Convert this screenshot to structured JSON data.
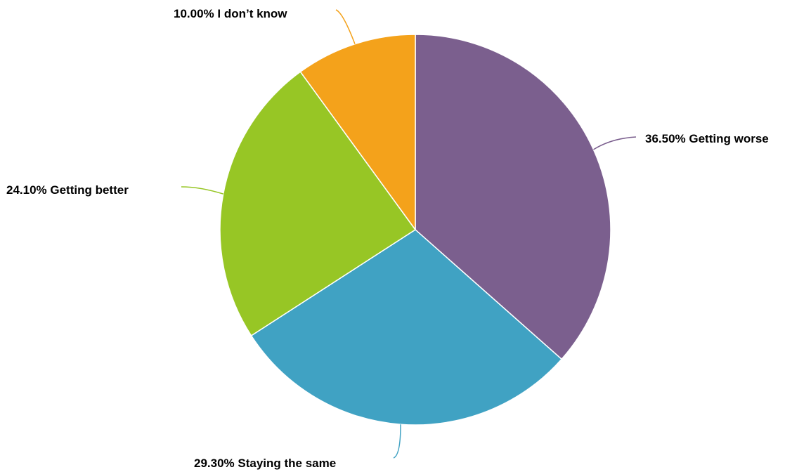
{
  "chart_data": {
    "type": "pie",
    "start": "top",
    "direction": "clockwise",
    "slices": [
      {
        "label": "Getting worse",
        "value": 36.5,
        "display": "36.50% Getting worse",
        "color": "#7B5F8E"
      },
      {
        "label": "Staying the same",
        "value": 29.3,
        "display": "29.30% Staying the same",
        "color": "#40A2C3"
      },
      {
        "label": "Getting better",
        "value": 24.1,
        "display": "24.10% Getting better",
        "color": "#97C625"
      },
      {
        "label": "I don't know",
        "value": 10.0,
        "display": "10.00% I don’t know",
        "color": "#F4A21B"
      }
    ],
    "legend": "none",
    "label_placement": "outside with leader lines"
  }
}
